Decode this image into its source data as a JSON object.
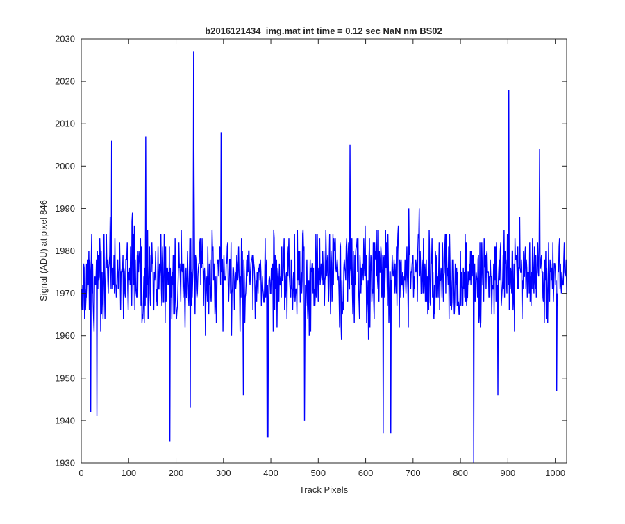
{
  "chart_data": {
    "type": "line",
    "title": "b2016121434_img.mat int time = 0.12 sec  NaN nm BS02",
    "xlabel": "Track Pixels",
    "ylabel": "Signal (ADU) at pixel 846",
    "xlim": [
      0,
      1024
    ],
    "ylim": [
      1930,
      2030
    ],
    "xticks": [
      0,
      100,
      200,
      300,
      400,
      500,
      600,
      700,
      800,
      900,
      1000
    ],
    "yticks": [
      1930,
      1940,
      1950,
      1960,
      1970,
      1980,
      1990,
      2000,
      2010,
      2020,
      2030
    ],
    "grid": false,
    "legend": "none",
    "series": [
      {
        "color": "#0000ff",
        "x_start": 1,
        "x_step": 1,
        "mean": 1974,
        "spread": 11,
        "n_points": 1024,
        "noise_seed": 846,
        "peaks": [
          {
            "x": 237,
            "y": 2027
          },
          {
            "x": 238,
            "y": 1997
          },
          {
            "x": 902,
            "y": 2018
          },
          {
            "x": 64,
            "y": 2006
          },
          {
            "x": 136,
            "y": 2007
          },
          {
            "x": 295,
            "y": 2008
          },
          {
            "x": 567,
            "y": 2005
          },
          {
            "x": 967,
            "y": 2004
          },
          {
            "x": 187,
            "y": 1935
          },
          {
            "x": 392,
            "y": 1936
          },
          {
            "x": 394,
            "y": 1936
          },
          {
            "x": 828,
            "y": 1930
          },
          {
            "x": 20,
            "y": 1942
          },
          {
            "x": 33,
            "y": 1941
          },
          {
            "x": 471,
            "y": 1940
          },
          {
            "x": 637,
            "y": 1937
          },
          {
            "x": 653,
            "y": 1937
          },
          {
            "x": 230,
            "y": 1943
          },
          {
            "x": 342,
            "y": 1946
          },
          {
            "x": 879,
            "y": 1946
          },
          {
            "x": 1003,
            "y": 1947
          }
        ]
      }
    ]
  }
}
